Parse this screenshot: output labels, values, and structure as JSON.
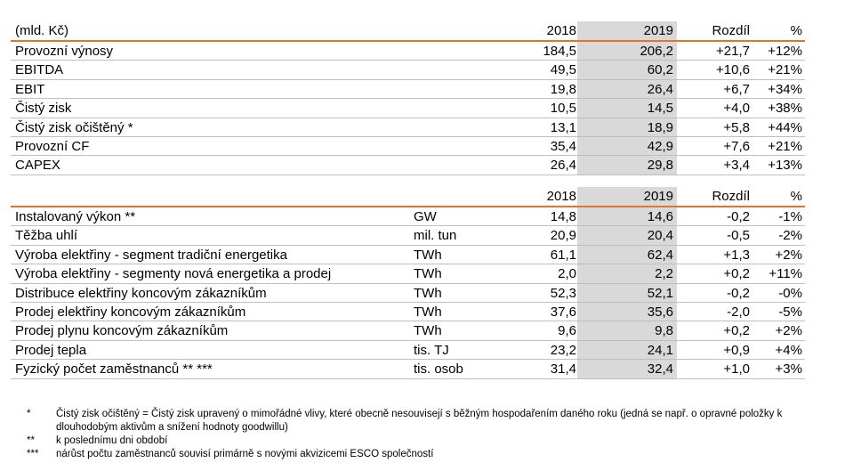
{
  "table1": {
    "header": {
      "label": "(mld. Kč)",
      "y2018": "2018",
      "y2019": "2019",
      "diff": "Rozdíl",
      "pct": "%"
    },
    "rows": [
      {
        "label": "Provozní výnosy",
        "y2018": "184,5",
        "y2019": "206,2",
        "diff": "+21,7",
        "pct": "+12%"
      },
      {
        "label": "EBITDA",
        "y2018": "49,5",
        "y2019": "60,2",
        "diff": "+10,6",
        "pct": "+21%"
      },
      {
        "label": "EBIT",
        "y2018": "19,8",
        "y2019": "26,4",
        "diff": "+6,7",
        "pct": "+34%"
      },
      {
        "label": "Čistý zisk",
        "y2018": "10,5",
        "y2019": "14,5",
        "diff": "+4,0",
        "pct": "+38%"
      },
      {
        "label": "Čistý zisk očištěný *",
        "y2018": "13,1",
        "y2019": "18,9",
        "diff": "+5,8",
        "pct": "+44%"
      },
      {
        "label": "Provozní CF",
        "y2018": "35,4",
        "y2019": "42,9",
        "diff": "+7,6",
        "pct": "+21%"
      },
      {
        "label": "CAPEX",
        "y2018": "26,4",
        "y2019": "29,8",
        "diff": "+3,4",
        "pct": "+13%"
      }
    ]
  },
  "table2": {
    "header": {
      "y2018": "2018",
      "y2019": "2019",
      "diff": "Rozdíl",
      "pct": "%"
    },
    "rows": [
      {
        "label": "Instalovaný výkon **",
        "unit": "GW",
        "y2018": "14,8",
        "y2019": "14,6",
        "diff": "-0,2",
        "pct": "-1%"
      },
      {
        "label": "Těžba uhlí",
        "unit": "mil. tun",
        "y2018": "20,9",
        "y2019": "20,4",
        "diff": "-0,5",
        "pct": "-2%"
      },
      {
        "label": "Výroba elektřiny - segment tradiční energetika",
        "unit": "TWh",
        "y2018": "61,1",
        "y2019": "62,4",
        "diff": "+1,3",
        "pct": "+2%"
      },
      {
        "label": "Výroba elektřiny - segmenty nová energetika a prodej",
        "unit": "TWh",
        "y2018": "2,0",
        "y2019": "2,2",
        "diff": "+0,2",
        "pct": "+11%"
      },
      {
        "label": "Distribuce elektřiny koncovým zákazníkům",
        "unit": "TWh",
        "y2018": "52,3",
        "y2019": "52,1",
        "diff": "-0,2",
        "pct": "-0%"
      },
      {
        "label": "Prodej elektřiny koncovým zákazníkům",
        "unit": "TWh",
        "y2018": "37,6",
        "y2019": "35,6",
        "diff": "-2,0",
        "pct": "-5%"
      },
      {
        "label": "Prodej plynu koncovým zákazníkům",
        "unit": "TWh",
        "y2018": "9,6",
        "y2019": "9,8",
        "diff": "+0,2",
        "pct": "+2%"
      },
      {
        "label": "Prodej tepla",
        "unit": "tis. TJ",
        "y2018": "23,2",
        "y2019": "24,1",
        "diff": "+0,9",
        "pct": "+4%"
      },
      {
        "label": "Fyzický počet zaměstnanců ** ***",
        "unit": "tis. osob",
        "y2018": "31,4",
        "y2019": "32,4",
        "diff": "+1,0",
        "pct": "+3%"
      }
    ]
  },
  "notes": [
    {
      "mark": "*",
      "text": "Čistý zisk očištěný = Čistý zisk upravený o mimořádné vlivy, které obecně nesouvisejí s běžným hospodařením daného roku (jedná se např. o opravné položky k dlouhodobým aktivům a snížení hodnoty goodwillu)"
    },
    {
      "mark": "**",
      "text": "k poslednímu dni období"
    },
    {
      "mark": "***",
      "text": "nárůst počtu zaměstnanců souvisí primárně s novými akvizicemi ESCO společností"
    }
  ],
  "colors": {
    "accent_line": "#ea7125",
    "highlight_column": "#d9d9d9"
  }
}
